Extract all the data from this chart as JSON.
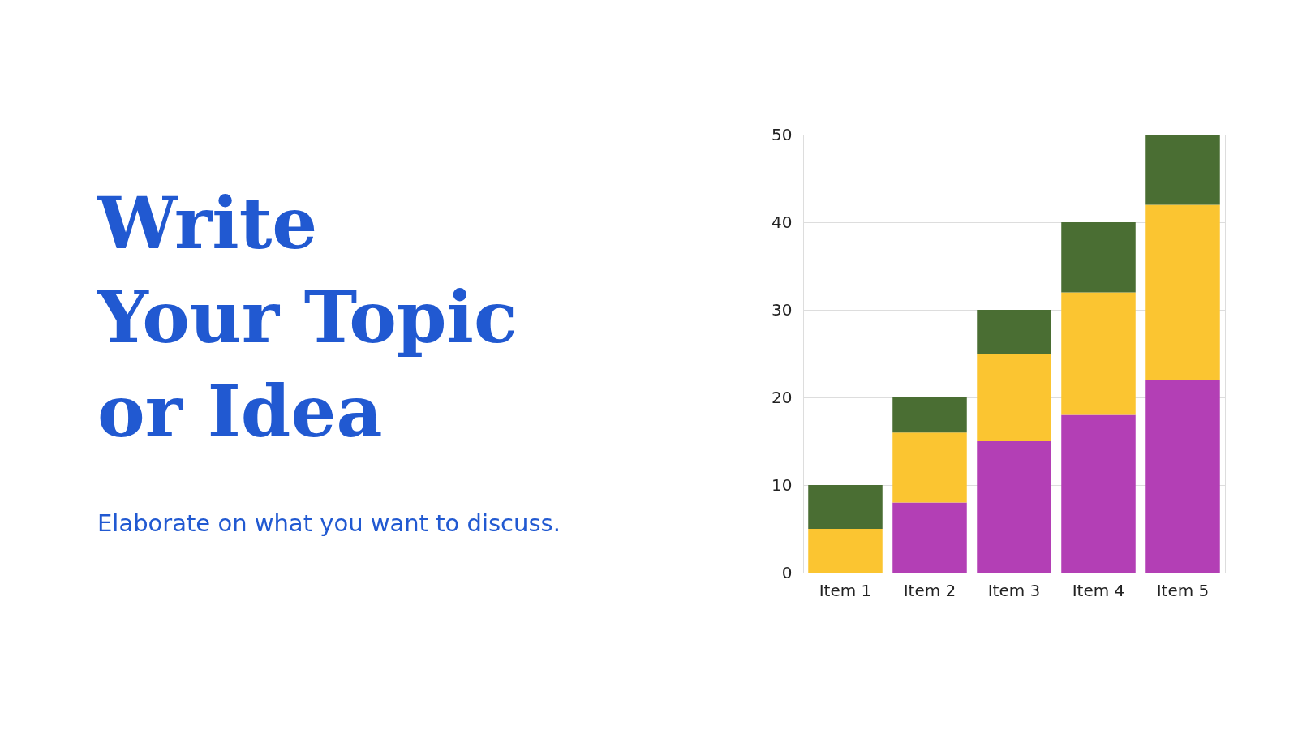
{
  "chart_data": {
    "type": "bar",
    "title": "Write\nYour Topic\nor Idea",
    "subtitle": "Elaborate on what you want to discuss.",
    "categories": [
      "Item 1",
      "Item 2",
      "Item 3",
      "Item 4",
      "Item 5"
    ],
    "stacked": true,
    "series": [
      {
        "color": "#b33fb5",
        "values": [
          0,
          8,
          15,
          18,
          22
        ]
      },
      {
        "color": "#fbc531",
        "values": [
          5,
          8,
          10,
          14,
          20
        ]
      },
      {
        "color": "#4a6e33",
        "values": [
          5,
          4,
          5,
          8,
          8
        ]
      }
    ],
    "ylim": [
      0,
      50
    ],
    "yticks": [
      0,
      10,
      20,
      30,
      40,
      50
    ],
    "grid": "y",
    "legend": false
  }
}
